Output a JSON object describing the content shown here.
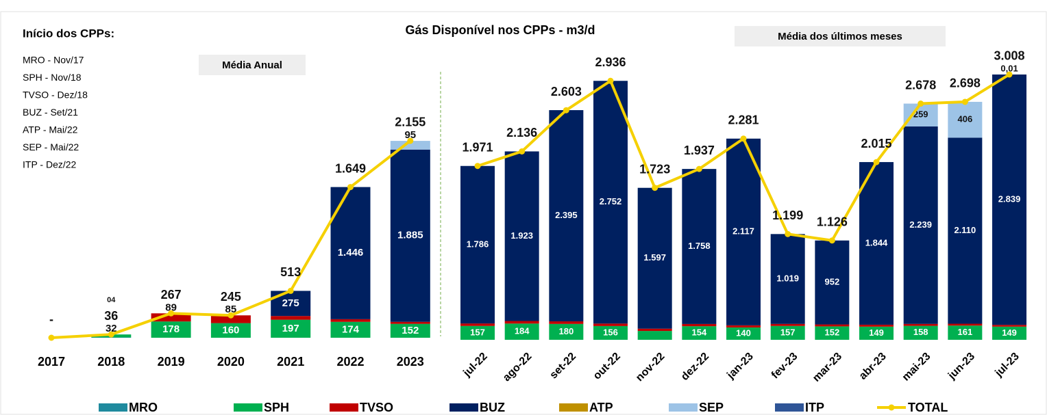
{
  "notes": {
    "title": "Início dos CPPs:",
    "items": [
      "MRO  - Nov/17",
      "SPH   - Nov/18",
      "TVSO - Dez/18",
      "BUZ  - Set/21",
      "ATP  - Mai/22",
      "SEP  - Mai/22",
      "ITP - Dez/22"
    ]
  },
  "title": "Gás Disponível nos CPPs - m3/d",
  "chart_data": [
    {
      "type": "bar",
      "subtitle": "Média Anual",
      "stacked": true,
      "categories": [
        "2017",
        "2018",
        "2019",
        "2020",
        "2021",
        "2022",
        "2023"
      ],
      "ylim": [
        0,
        3000
      ],
      "series": [
        {
          "name": "MRO",
          "color": "#1f8a9e",
          "values": [
            null,
            4,
            null,
            null,
            null,
            null,
            null
          ],
          "value_labels": [
            null,
            "04",
            null,
            null,
            null,
            null,
            null
          ]
        },
        {
          "name": "SPH",
          "color": "#00b050",
          "values": [
            null,
            32,
            178,
            160,
            197,
            174,
            152
          ]
        },
        {
          "name": "TVSO",
          "color": "#c00000",
          "values": [
            null,
            null,
            89,
            85,
            41,
            29,
            22
          ]
        },
        {
          "name": "BUZ",
          "color": "#002060",
          "values": [
            null,
            null,
            null,
            null,
            275,
            1446,
            1885
          ],
          "value_labels": [
            null,
            null,
            null,
            null,
            "275",
            "1.446",
            "1.885"
          ]
        },
        {
          "name": "ATP",
          "color": "#bf9000",
          "values": [
            null,
            null,
            null,
            null,
            null,
            null,
            null
          ]
        },
        {
          "name": "SEP",
          "color": "#9dc3e6",
          "values": [
            null,
            null,
            null,
            null,
            null,
            null,
            95
          ]
        },
        {
          "name": "ITP",
          "color": "#2f5597",
          "values": [
            null,
            null,
            null,
            null,
            null,
            null,
            null
          ]
        }
      ],
      "total": {
        "name": "TOTAL",
        "color": "#f5d000",
        "values": [
          0,
          36,
          267,
          245,
          513,
          1649,
          2155
        ],
        "value_labels": [
          "-",
          "36",
          "267",
          "245",
          "513",
          "1.649",
          "2.155"
        ]
      }
    },
    {
      "type": "bar",
      "subtitle": "Média dos últimos meses",
      "stacked": true,
      "categories": [
        "jul-22",
        "ago-22",
        "set-22",
        "out-22",
        "nov-22",
        "dez-22",
        "jan-23",
        "fev-23",
        "mar-23",
        "abr-23",
        "mai-23",
        "jun-23",
        "jul-23"
      ],
      "ylim": [
        0,
        3000
      ],
      "series": [
        {
          "name": "MRO",
          "color": "#1f8a9e",
          "values": [
            null,
            null,
            null,
            null,
            null,
            null,
            null,
            null,
            null,
            null,
            null,
            null,
            null
          ]
        },
        {
          "name": "SPH",
          "color": "#00b050",
          "values": [
            157,
            184,
            180,
            156,
            100,
            154,
            140,
            157,
            152,
            149,
            158,
            161,
            149
          ]
        },
        {
          "name": "TVSO",
          "color": "#c00000",
          "values": [
            28,
            29,
            29,
            28,
            26,
            25,
            24,
            23,
            22,
            22,
            22,
            21,
            20
          ]
        },
        {
          "name": "BUZ",
          "color": "#002060",
          "values": [
            1786,
            1923,
            2395,
            2752,
            1597,
            1758,
            2117,
            1019,
            952,
            1844,
            2239,
            2110,
            2839
          ],
          "value_labels": [
            "1.786",
            "1.923",
            "2.395",
            "2.752",
            "1.597",
            "1.758",
            "2.117",
            "1.019",
            "952",
            "1.844",
            "2.239",
            "2.110",
            "2.839"
          ]
        },
        {
          "name": "ATP",
          "color": "#bf9000",
          "values": [
            null,
            null,
            null,
            null,
            null,
            null,
            null,
            null,
            null,
            null,
            null,
            null,
            null
          ]
        },
        {
          "name": "SEP",
          "color": "#9dc3e6",
          "values": [
            null,
            null,
            null,
            null,
            null,
            null,
            null,
            null,
            null,
            null,
            259,
            406,
            0.01
          ],
          "value_labels": [
            null,
            null,
            null,
            null,
            null,
            null,
            null,
            null,
            null,
            null,
            "259",
            "406",
            "0,01"
          ]
        },
        {
          "name": "ITP",
          "color": "#2f5597",
          "values": [
            null,
            null,
            null,
            null,
            null,
            null,
            null,
            null,
            null,
            null,
            null,
            null,
            null
          ]
        }
      ],
      "total": {
        "name": "TOTAL",
        "color": "#f5d000",
        "values": [
          1971,
          2136,
          2603,
          2936,
          1723,
          1937,
          2281,
          1199,
          1126,
          2015,
          2678,
          2698,
          3008
        ],
        "value_labels": [
          "1.971",
          "2.136",
          "2.603",
          "2.936",
          "1.723",
          "1.937",
          "2.281",
          "1.199",
          "1.126",
          "2.015",
          "2.678",
          "2.698",
          "3.008"
        ]
      }
    }
  ]
}
